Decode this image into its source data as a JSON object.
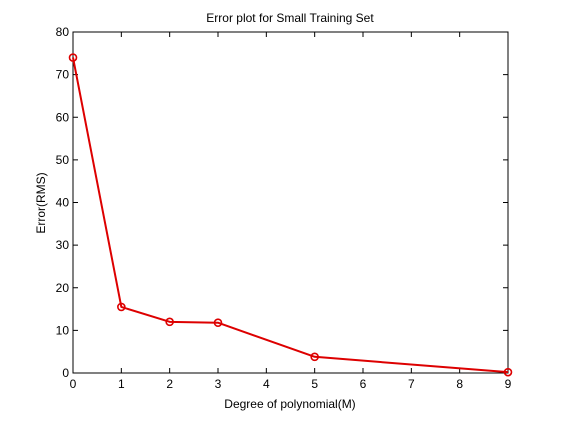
{
  "chart_data": {
    "type": "line",
    "title": "Error plot for Small Training Set",
    "xlabel": "Degree of polynomial(M)",
    "ylabel": "Error(RMS)",
    "xlim": [
      0,
      9
    ],
    "ylim": [
      0,
      80
    ],
    "xticks": [
      0,
      1,
      2,
      3,
      4,
      5,
      6,
      7,
      8,
      9
    ],
    "yticks": [
      0,
      10,
      20,
      30,
      40,
      50,
      60,
      70,
      80
    ],
    "grid": false,
    "legend": "none",
    "series": [
      {
        "color": "#dd0000",
        "marker": "circle",
        "x": [
          0,
          1,
          2,
          3,
          5,
          9
        ],
        "y": [
          74,
          15.5,
          12,
          11.8,
          3.8,
          0.2
        ]
      }
    ]
  }
}
